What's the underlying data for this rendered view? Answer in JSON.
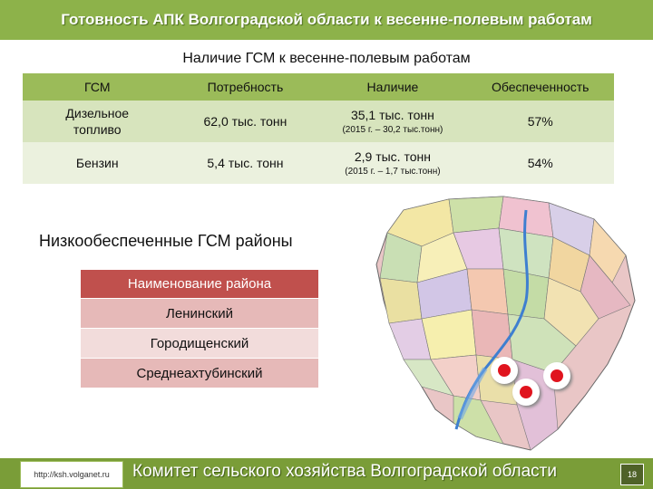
{
  "header": {
    "title": "Готовность АПК Волгоградской области к весенне-полевым работам"
  },
  "gsm_section": {
    "title": "Наличие ГСМ к весенне-полевым работам",
    "columns": [
      "ГСМ",
      "Потребность",
      "Наличие",
      "Обеспеченность"
    ],
    "rows": [
      {
        "fuel": "Дизельное топливо",
        "need": "62,0 тыс. тонн",
        "have": "35,1 тыс. тонн",
        "have_note": "(2015 г. – 30,2 тыс.тонн)",
        "security": "57%"
      },
      {
        "fuel": "Бензин",
        "need": "5,4 тыс. тонн",
        "have": "2,9 тыс. тонн",
        "have_note": "(2015 г. – 1,7 тыс.тонн)",
        "security": "54%"
      }
    ]
  },
  "low_section": {
    "title": "Низкообеспеченные ГСМ районы",
    "header": "Наименование района",
    "districts": [
      "Ленинский",
      "Городищенский",
      "Среднеахтубинский"
    ]
  },
  "footer": {
    "url": "http://ksh.volganet.ru",
    "committee": "Комитет сельского хозяйства Волгоградской области",
    "page": "18"
  },
  "colors": {
    "header_green": "#8db24a",
    "table_header": "#9bbb59",
    "district_header": "#c0504d",
    "marker_red": "#e0141e"
  },
  "map": {
    "name": "volgograd-region-map",
    "markers": 3
  }
}
